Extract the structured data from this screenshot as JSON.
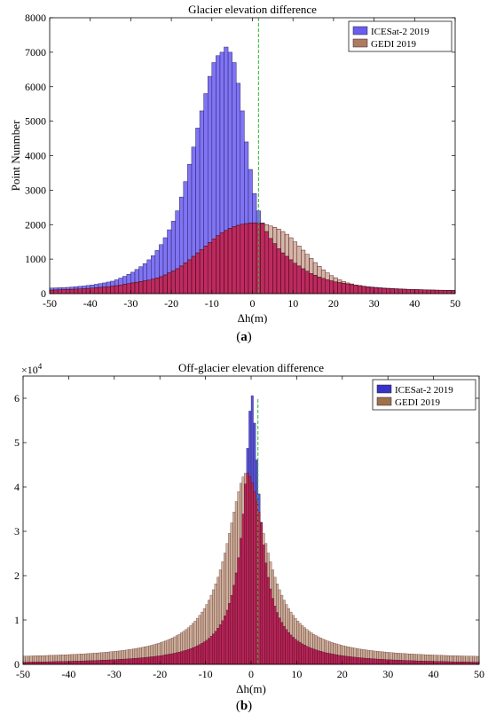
{
  "panels": [
    {
      "caption_label": "a",
      "chart_data": {
        "type": "bar",
        "title": "Glacier elevation difference",
        "xlabel": "Δh(m)",
        "ylabel": "Point Nunmber",
        "xlim": [
          -50,
          50
        ],
        "ylim": [
          0,
          8000
        ],
        "xticks": [
          -50,
          -40,
          -30,
          -20,
          -10,
          0,
          10,
          20,
          30,
          40,
          50
        ],
        "yticks": [
          0,
          1000,
          2000,
          3000,
          4000,
          5000,
          6000,
          7000,
          8000
        ],
        "y_exponent_label": "",
        "bin_width": 1,
        "legend_position": "top-right",
        "vertical_line_x": 1.5,
        "series": [
          {
            "name": "ICESat-2 2019",
            "color": "#6a5cf0",
            "values": [
              160,
              165,
              170,
              175,
              180,
              190,
              200,
              210,
              220,
              235,
              250,
              270,
              290,
              310,
              335,
              360,
              400,
              450,
              500,
              560,
              620,
              700,
              780,
              870,
              980,
              1100,
              1250,
              1420,
              1620,
              1850,
              2100,
              2400,
              2800,
              3250,
              3750,
              4250,
              4800,
              5300,
              5800,
              6300,
              6700,
              6900,
              7000,
              7150,
              7000,
              6700,
              6100,
              5300,
              4400,
              3600,
              2900,
              2400,
              2050,
              1800,
              1600,
              1450,
              1300,
              1180,
              1080,
              980,
              880,
              800,
              720,
              650,
              580,
              530,
              480,
              440,
              400,
              370,
              340,
              320,
              300,
              280,
              260,
              245,
              230,
              215,
              200,
              190,
              180,
              170,
              162,
              155,
              148,
              142,
              136,
              130,
              125,
              120,
              116,
              112,
              108,
              104,
              100,
              97,
              94,
              91,
              88,
              85
            ]
          },
          {
            "name": "GEDI 2019",
            "color": "#b07a62",
            "values": [
              100,
              105,
              110,
              115,
              120,
              125,
              130,
              135,
              140,
              150,
              160,
              170,
              180,
              190,
              200,
              215,
              230,
              250,
              270,
              290,
              310,
              330,
              350,
              370,
              390,
              420,
              450,
              490,
              540,
              600,
              660,
              720,
              800,
              890,
              980,
              1080,
              1180,
              1280,
              1380,
              1480,
              1580,
              1680,
              1760,
              1830,
              1890,
              1940,
              1980,
              2010,
              2030,
              2050,
              2050,
              2040,
              2030,
              2000,
              1960,
              1920,
              1870,
              1800,
              1720,
              1620,
              1500,
              1380,
              1260,
              1140,
              1020,
              900,
              790,
              690,
              600,
              520,
              460,
              400,
              350,
              310,
              280,
              250,
              230,
              210,
              195,
              180,
              170,
              160,
              150,
              145,
              140,
              135,
              130,
              125,
              120,
              118,
              115,
              112,
              110,
              108,
              105,
              102,
              100,
              98,
              96,
              94
            ]
          }
        ]
      }
    },
    {
      "caption_label": "b",
      "chart_data": {
        "type": "bar",
        "title": "Off-glacier elevation difference",
        "xlabel": "Δh(m)",
        "ylabel": "Point Nunmber",
        "xlim": [
          -50,
          50
        ],
        "ylim": [
          0,
          65000
        ],
        "xticks": [
          -50,
          -40,
          -30,
          -20,
          -10,
          0,
          10,
          20,
          30,
          40,
          50
        ],
        "yticks": [
          0,
          10000,
          20000,
          30000,
          40000,
          50000,
          60000
        ],
        "ytick_labels": [
          "0",
          "1",
          "2",
          "3",
          "4",
          "5",
          "6"
        ],
        "y_exponent_label": "×10",
        "y_exponent_power": "4",
        "bin_width": 0.5,
        "legend_position": "top-right",
        "vertical_line_x": 1.5,
        "series": [
          {
            "name": "ICESat-2 2019",
            "color": "#3a32c8"
          },
          {
            "name": "GEDI 2019",
            "color": "#a0704a"
          }
        ]
      }
    }
  ]
}
